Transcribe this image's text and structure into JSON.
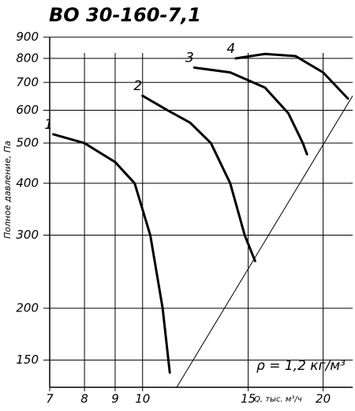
{
  "chart_data": {
    "type": "line",
    "title": "ВО 30-160-7,1",
    "xlabel": "Q, тыс. м³/ч",
    "ylabel": "Полное давление, Па",
    "annotation": "ρ = 1,2 кг/м³",
    "xscale": "log",
    "yscale": "log",
    "grid": true,
    "color": "#000000",
    "xlim": [
      7,
      22.4
    ],
    "ylim": [
      129,
      900
    ],
    "xticks": [
      7,
      8,
      9,
      10,
      15,
      20
    ],
    "yticks": [
      150,
      200,
      300,
      400,
      500,
      600,
      700,
      800,
      900
    ],
    "series": [
      {
        "name": "1",
        "x": [
          7.1,
          8,
          9,
          9.7,
          10.3,
          10.8,
          11.1
        ],
        "values": [
          525,
          500,
          450,
          400,
          300,
          200,
          140
        ]
      },
      {
        "name": "2",
        "x": [
          10,
          11,
          12,
          13,
          14,
          14.8,
          15.4
        ],
        "values": [
          650,
          600,
          560,
          500,
          400,
          300,
          260
        ]
      },
      {
        "name": "3",
        "x": [
          12.2,
          14,
          16,
          17.5,
          18.5,
          18.8
        ],
        "values": [
          760,
          740,
          680,
          590,
          500,
          470
        ]
      },
      {
        "name": "4",
        "x": [
          14.3,
          16,
          18,
          20,
          22
        ],
        "values": [
          800,
          820,
          810,
          740,
          640
        ]
      }
    ],
    "boundary_line": {
      "x": [
        11.4,
        22.4
      ],
      "values": [
        129,
        650
      ]
    }
  }
}
